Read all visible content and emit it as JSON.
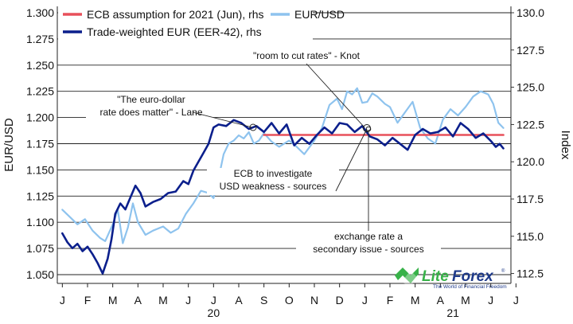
{
  "colors": {
    "ecb": "#e8505b",
    "eurusd": "#8ec3ee",
    "eer": "#0b1f8c",
    "grid": "#222222",
    "logo_green": "#38b249",
    "logo_blue": "#1e3a8a"
  },
  "chart_data": {
    "type": "line",
    "xlabel": "",
    "ylabel_left": "EUR/USD",
    "ylabel_right": "Index",
    "ylim_left": [
      1.045,
      1.3
    ],
    "ylim_right": [
      112.5,
      130.0
    ],
    "yticks_left": [
      "1.300",
      "1.275",
      "1.250",
      "1.225",
      "1.200",
      "1.175",
      "1.150",
      "1.125",
      "1.100",
      "1.075",
      "1.050"
    ],
    "yticks_right": [
      "130.0",
      "127.5",
      "125.0",
      "122.5",
      "120.0",
      "117.5",
      "115.0",
      "112.5"
    ],
    "months": [
      "J",
      "F",
      "M",
      "A",
      "M",
      "J",
      "J",
      "A",
      "S",
      "O",
      "N",
      "D",
      "J",
      "F",
      "M",
      "A",
      "M",
      "J",
      "J"
    ],
    "years": [
      {
        "label": "20",
        "at_month": 6
      },
      {
        "label": "21",
        "at_month": 15.5
      }
    ],
    "grid": true,
    "legend_position": "top-left",
    "legend": [
      {
        "label": "ECB assumption for 2021 (Jun), rhs",
        "series": "ecb"
      },
      {
        "label": "EUR/USD",
        "series": "eurusd"
      },
      {
        "label": "Trade-weighted EUR (EER-42), rhs",
        "series": "eer"
      }
    ],
    "series": [
      {
        "key": "eurusd",
        "name": "EUR/USD",
        "axis": "left",
        "x": [
          0.0,
          0.3,
          0.6,
          0.9,
          1.2,
          1.5,
          1.7,
          2.0,
          2.2,
          2.4,
          2.6,
          2.8,
          3.0,
          3.3,
          3.6,
          4.0,
          4.3,
          4.6,
          4.9,
          5.2,
          5.5,
          5.8,
          6.0,
          6.2,
          6.4,
          6.6,
          6.8,
          7.0,
          7.2,
          7.4,
          7.6,
          7.8,
          8.0,
          8.3,
          8.6,
          9.0,
          9.3,
          9.6,
          10.0,
          10.3,
          10.6,
          10.9,
          11.1,
          11.3,
          11.5,
          11.7,
          11.9,
          12.1,
          12.3,
          12.5,
          12.8,
          13.0,
          13.3,
          13.6,
          13.9,
          14.2,
          14.5,
          14.8,
          15.1,
          15.4,
          15.7,
          16.0,
          16.3,
          16.6,
          16.9,
          17.1,
          17.3,
          17.5
        ],
        "values": [
          1.112,
          1.105,
          1.098,
          1.103,
          1.092,
          1.085,
          1.082,
          1.098,
          1.112,
          1.08,
          1.095,
          1.118,
          1.1,
          1.088,
          1.092,
          1.096,
          1.09,
          1.094,
          1.108,
          1.118,
          1.13,
          1.128,
          1.123,
          1.142,
          1.165,
          1.175,
          1.178,
          1.183,
          1.18,
          1.186,
          1.175,
          1.178,
          1.185,
          1.177,
          1.172,
          1.178,
          1.172,
          1.165,
          1.178,
          1.19,
          1.212,
          1.218,
          1.208,
          1.225,
          1.222,
          1.228,
          1.214,
          1.215,
          1.223,
          1.22,
          1.213,
          1.21,
          1.195,
          1.205,
          1.215,
          1.19,
          1.18,
          1.175,
          1.198,
          1.208,
          1.202,
          1.21,
          1.22,
          1.225,
          1.222,
          1.213,
          1.195,
          1.19
        ]
      },
      {
        "key": "eer",
        "name": "Trade-weighted EUR (EER-42), rhs",
        "axis": "right",
        "x": [
          0.0,
          0.2,
          0.4,
          0.6,
          0.8,
          1.0,
          1.2,
          1.4,
          1.6,
          1.8,
          1.95,
          2.1,
          2.3,
          2.5,
          2.7,
          2.9,
          3.1,
          3.3,
          3.6,
          3.9,
          4.2,
          4.5,
          4.8,
          5.0,
          5.2,
          5.4,
          5.6,
          5.8,
          6.0,
          6.2,
          6.5,
          6.8,
          7.1,
          7.4,
          7.7,
          8.0,
          8.3,
          8.6,
          8.9,
          9.2,
          9.5,
          9.8,
          10.1,
          10.4,
          10.7,
          11.0,
          11.3,
          11.6,
          11.9,
          12.2,
          12.5,
          12.8,
          13.1,
          13.4,
          13.7,
          14.0,
          14.3,
          14.6,
          14.9,
          15.2,
          15.5,
          15.8,
          16.1,
          16.4,
          16.7,
          17.0,
          17.2,
          17.35,
          17.5
        ],
        "values": [
          115.2,
          114.6,
          114.2,
          114.5,
          114.0,
          114.3,
          113.8,
          113.2,
          112.5,
          113.5,
          114.8,
          116.5,
          117.2,
          116.8,
          117.6,
          118.4,
          117.9,
          117.0,
          117.3,
          117.5,
          117.9,
          118.0,
          118.7,
          118.5,
          119.4,
          120.0,
          120.6,
          121.2,
          122.3,
          122.5,
          122.4,
          122.8,
          122.6,
          122.2,
          122.4,
          122.0,
          122.6,
          121.9,
          122.5,
          121.1,
          121.6,
          121.2,
          121.8,
          122.3,
          121.9,
          122.6,
          122.5,
          122.0,
          122.4,
          121.7,
          121.5,
          121.1,
          121.6,
          121.2,
          120.8,
          121.8,
          122.2,
          121.9,
          122.0,
          122.3,
          121.7,
          122.6,
          122.2,
          121.6,
          121.9,
          121.4,
          121.0,
          121.2,
          120.9
        ]
      },
      {
        "key": "ecb",
        "name": "ECB assumption for 2021 (Jun), rhs",
        "axis": "right",
        "x": [
          8.0,
          17.5
        ],
        "values": [
          121.8,
          121.8
        ]
      }
    ],
    "annotations": [
      {
        "lines": [
          "\"The euro-dollar",
          "rate does matter\" - Lane"
        ]
      },
      {
        "lines": [
          "\"room to cut rates\" - Knot"
        ]
      },
      {
        "lines": [
          "ECB to investigate",
          "USD weakness - sources"
        ]
      },
      {
        "lines": [
          "exchange rate a",
          "secondary issue - sources"
        ]
      }
    ]
  },
  "logo": {
    "brand_part1": "Lite",
    "brand_part2": "Forex",
    "tagline": "The World of Financial Freedom",
    "mark": "®"
  }
}
